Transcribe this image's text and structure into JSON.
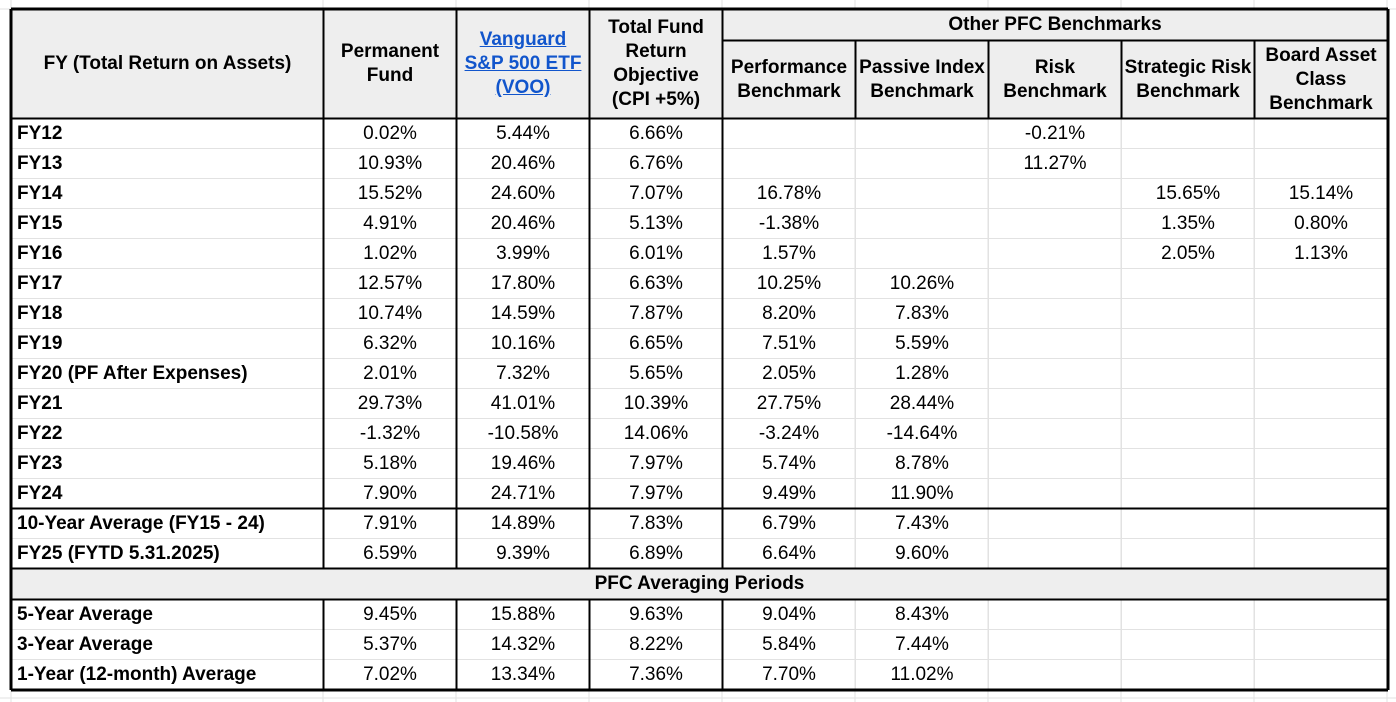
{
  "headers": {
    "fy": "FY (Total Return on Assets)",
    "permanent_fund": "Permanent Fund",
    "vanguard": "Vanguard S&P 500 ETF (VOO)",
    "objective": "Total Fund Return Objective (CPI +5%)",
    "group": "Other PFC Benchmarks",
    "performance": "Performance Benchmark",
    "passive": "Passive Index Benchmark",
    "risk": "Risk Benchmark",
    "strategic": "Strategic Risk Benchmark",
    "board": "Board Asset Class Benchmark"
  },
  "rows": [
    [
      "FY12",
      "0.02%",
      "5.44%",
      "6.66%",
      "",
      "",
      "-0.21%",
      "",
      ""
    ],
    [
      "FY13",
      "10.93%",
      "20.46%",
      "6.76%",
      "",
      "",
      "11.27%",
      "",
      ""
    ],
    [
      "FY14",
      "15.52%",
      "24.60%",
      "7.07%",
      "16.78%",
      "",
      "",
      "15.65%",
      "15.14%"
    ],
    [
      "FY15",
      "4.91%",
      "20.46%",
      "5.13%",
      "-1.38%",
      "",
      "",
      "1.35%",
      "0.80%"
    ],
    [
      "FY16",
      "1.02%",
      "3.99%",
      "6.01%",
      "1.57%",
      "",
      "",
      "2.05%",
      "1.13%"
    ],
    [
      "FY17",
      "12.57%",
      "17.80%",
      "6.63%",
      "10.25%",
      "10.26%",
      "",
      "",
      ""
    ],
    [
      "FY18",
      "10.74%",
      "14.59%",
      "7.87%",
      "8.20%",
      "7.83%",
      "",
      "",
      ""
    ],
    [
      "FY19",
      "6.32%",
      "10.16%",
      "6.65%",
      "7.51%",
      "5.59%",
      "",
      "",
      ""
    ],
    [
      "FY20 (PF After Expenses)",
      "2.01%",
      "7.32%",
      "5.65%",
      "2.05%",
      "1.28%",
      "",
      "",
      ""
    ],
    [
      "FY21",
      "29.73%",
      "41.01%",
      "10.39%",
      "27.75%",
      "28.44%",
      "",
      "",
      ""
    ],
    [
      "FY22",
      "-1.32%",
      "-10.58%",
      "14.06%",
      "-3.24%",
      "-14.64%",
      "",
      "",
      ""
    ],
    [
      "FY23",
      "5.18%",
      "19.46%",
      "7.97%",
      "5.74%",
      "8.78%",
      "",
      "",
      ""
    ],
    [
      "FY24",
      "7.90%",
      "24.71%",
      "7.97%",
      "9.49%",
      "11.90%",
      "",
      "",
      ""
    ]
  ],
  "summary_rows": [
    [
      "10-Year Average (FY15 - 24)",
      "7.91%",
      "14.89%",
      "7.83%",
      "6.79%",
      "7.43%",
      "",
      "",
      ""
    ],
    [
      "FY25 (FYTD 5.31.2025)",
      "6.59%",
      "9.39%",
      "6.89%",
      "6.64%",
      "9.60%",
      "",
      "",
      ""
    ]
  ],
  "section_title": "PFC Averaging Periods",
  "averaging_rows": [
    [
      "5-Year Average",
      "9.45%",
      "15.88%",
      "9.63%",
      "9.04%",
      "8.43%",
      "",
      "",
      ""
    ],
    [
      "3-Year Average",
      "5.37%",
      "14.32%",
      "8.22%",
      "5.84%",
      "7.44%",
      "",
      "",
      ""
    ],
    [
      "1-Year (12-month) Average",
      "7.02%",
      "13.34%",
      "7.36%",
      "7.70%",
      "11.02%",
      "",
      "",
      ""
    ]
  ]
}
